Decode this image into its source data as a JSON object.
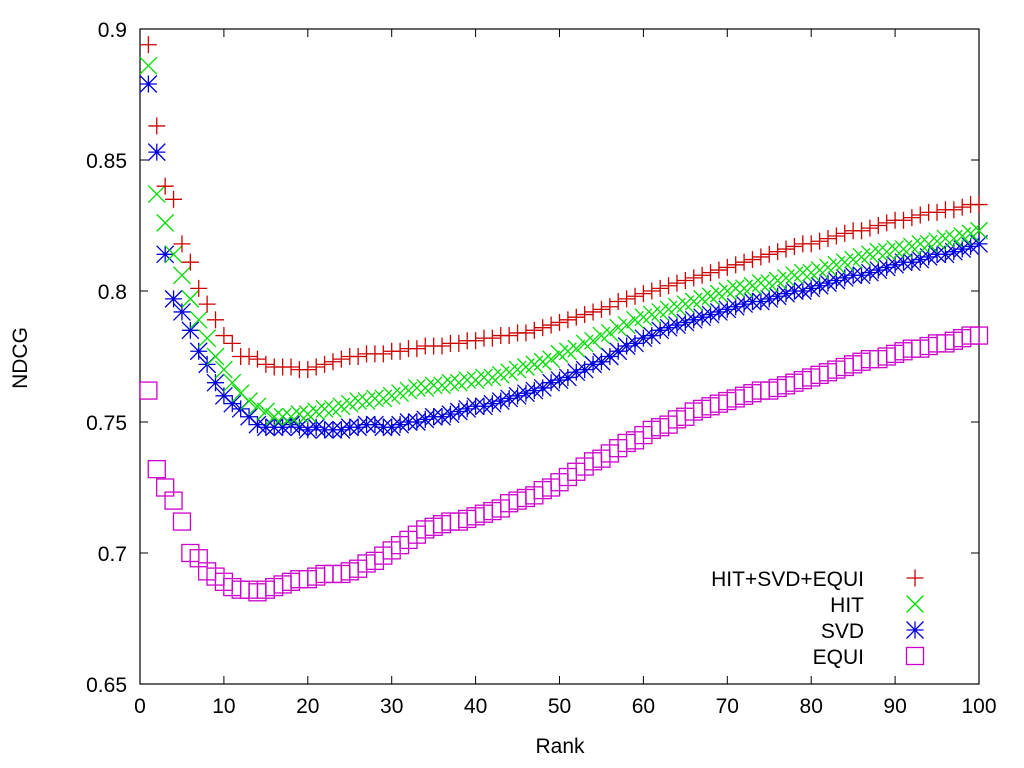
{
  "chart_data": {
    "type": "scatter",
    "title": "",
    "xlabel": "Rank",
    "ylabel": "NDCG",
    "xlim": [
      0,
      100
    ],
    "ylim": [
      0.65,
      0.9
    ],
    "xticks": [
      "0",
      "10",
      "20",
      "30",
      "40",
      "50",
      "60",
      "70",
      "80",
      "90",
      "100"
    ],
    "yticks": [
      "0.65",
      "0.7",
      "0.75",
      "0.8",
      "0.85",
      "0.9"
    ],
    "grid": false,
    "legend_position": "bottom-right",
    "x": [
      1,
      2,
      3,
      4,
      5,
      6,
      7,
      8,
      9,
      10,
      11,
      12,
      13,
      14,
      15,
      16,
      17,
      18,
      19,
      20,
      21,
      22,
      23,
      24,
      25,
      26,
      27,
      28,
      29,
      30,
      31,
      32,
      33,
      34,
      35,
      36,
      37,
      38,
      39,
      40,
      41,
      42,
      43,
      44,
      45,
      46,
      47,
      48,
      49,
      50,
      51,
      52,
      53,
      54,
      55,
      56,
      57,
      58,
      59,
      60,
      61,
      62,
      63,
      64,
      65,
      66,
      67,
      68,
      69,
      70,
      71,
      72,
      73,
      74,
      75,
      76,
      77,
      78,
      79,
      80,
      81,
      82,
      83,
      84,
      85,
      86,
      87,
      88,
      89,
      90,
      91,
      92,
      93,
      94,
      95,
      96,
      97,
      98,
      99,
      100
    ],
    "series": [
      {
        "name": "HIT+SVD+EQUI",
        "marker": "plus",
        "color": "#cc0000",
        "values": [
          0.894,
          0.863,
          0.84,
          0.835,
          0.818,
          0.811,
          0.801,
          0.795,
          0.789,
          0.783,
          0.78,
          0.775,
          0.775,
          0.774,
          0.772,
          0.771,
          0.771,
          0.771,
          0.77,
          0.77,
          0.771,
          0.772,
          0.773,
          0.774,
          0.775,
          0.775,
          0.776,
          0.776,
          0.776,
          0.777,
          0.777,
          0.778,
          0.778,
          0.779,
          0.779,
          0.779,
          0.78,
          0.78,
          0.781,
          0.781,
          0.782,
          0.782,
          0.783,
          0.783,
          0.784,
          0.784,
          0.785,
          0.786,
          0.787,
          0.788,
          0.789,
          0.79,
          0.791,
          0.792,
          0.793,
          0.794,
          0.796,
          0.797,
          0.798,
          0.799,
          0.8,
          0.801,
          0.802,
          0.803,
          0.804,
          0.805,
          0.806,
          0.807,
          0.808,
          0.809,
          0.81,
          0.811,
          0.812,
          0.813,
          0.814,
          0.815,
          0.816,
          0.817,
          0.818,
          0.818,
          0.819,
          0.82,
          0.821,
          0.822,
          0.823,
          0.823,
          0.824,
          0.825,
          0.826,
          0.827,
          0.827,
          0.828,
          0.829,
          0.83,
          0.83,
          0.831,
          0.831,
          0.832,
          0.833,
          0.833
        ]
      },
      {
        "name": "HIT",
        "marker": "cross",
        "color": "#00dd00",
        "values": [
          0.886,
          0.837,
          0.826,
          0.814,
          0.806,
          0.797,
          0.789,
          0.782,
          0.775,
          0.77,
          0.765,
          0.761,
          0.758,
          0.756,
          0.754,
          0.752,
          0.752,
          0.752,
          0.753,
          0.753,
          0.754,
          0.755,
          0.755,
          0.756,
          0.757,
          0.758,
          0.758,
          0.759,
          0.759,
          0.76,
          0.761,
          0.762,
          0.763,
          0.763,
          0.764,
          0.764,
          0.765,
          0.765,
          0.766,
          0.766,
          0.767,
          0.767,
          0.768,
          0.769,
          0.77,
          0.771,
          0.772,
          0.773,
          0.774,
          0.776,
          0.777,
          0.778,
          0.78,
          0.781,
          0.783,
          0.784,
          0.786,
          0.787,
          0.789,
          0.79,
          0.791,
          0.792,
          0.793,
          0.794,
          0.795,
          0.796,
          0.797,
          0.798,
          0.799,
          0.8,
          0.801,
          0.801,
          0.802,
          0.803,
          0.803,
          0.804,
          0.805,
          0.806,
          0.807,
          0.807,
          0.808,
          0.809,
          0.81,
          0.811,
          0.812,
          0.813,
          0.814,
          0.815,
          0.815,
          0.816,
          0.816,
          0.817,
          0.818,
          0.818,
          0.819,
          0.82,
          0.82,
          0.821,
          0.822,
          0.823
        ]
      },
      {
        "name": "SVD",
        "marker": "star",
        "color": "#0000dd",
        "values": [
          0.879,
          0.853,
          0.814,
          0.797,
          0.792,
          0.785,
          0.777,
          0.772,
          0.765,
          0.76,
          0.757,
          0.755,
          0.752,
          0.749,
          0.748,
          0.748,
          0.748,
          0.749,
          0.748,
          0.747,
          0.748,
          0.747,
          0.747,
          0.747,
          0.748,
          0.748,
          0.749,
          0.749,
          0.748,
          0.748,
          0.749,
          0.75,
          0.75,
          0.751,
          0.752,
          0.752,
          0.753,
          0.754,
          0.755,
          0.756,
          0.756,
          0.757,
          0.758,
          0.759,
          0.76,
          0.761,
          0.762,
          0.763,
          0.765,
          0.766,
          0.767,
          0.769,
          0.77,
          0.772,
          0.773,
          0.775,
          0.777,
          0.779,
          0.78,
          0.782,
          0.783,
          0.785,
          0.786,
          0.787,
          0.788,
          0.789,
          0.79,
          0.791,
          0.792,
          0.793,
          0.794,
          0.795,
          0.796,
          0.796,
          0.797,
          0.798,
          0.799,
          0.8,
          0.8,
          0.801,
          0.802,
          0.803,
          0.804,
          0.805,
          0.806,
          0.806,
          0.807,
          0.808,
          0.809,
          0.81,
          0.811,
          0.811,
          0.812,
          0.813,
          0.814,
          0.814,
          0.815,
          0.816,
          0.817,
          0.818
        ]
      },
      {
        "name": "EQUI",
        "marker": "square",
        "color": "#cc00cc",
        "values": [
          0.762,
          0.732,
          0.725,
          0.72,
          0.712,
          0.7,
          0.698,
          0.693,
          0.691,
          0.689,
          0.687,
          0.686,
          0.686,
          0.685,
          0.686,
          0.687,
          0.688,
          0.689,
          0.69,
          0.69,
          0.691,
          0.692,
          0.692,
          0.692,
          0.693,
          0.694,
          0.696,
          0.697,
          0.699,
          0.701,
          0.703,
          0.705,
          0.707,
          0.709,
          0.71,
          0.711,
          0.712,
          0.712,
          0.713,
          0.714,
          0.715,
          0.716,
          0.717,
          0.719,
          0.72,
          0.721,
          0.722,
          0.724,
          0.725,
          0.727,
          0.729,
          0.731,
          0.733,
          0.735,
          0.736,
          0.738,
          0.74,
          0.742,
          0.743,
          0.745,
          0.747,
          0.748,
          0.749,
          0.751,
          0.752,
          0.754,
          0.755,
          0.756,
          0.757,
          0.758,
          0.759,
          0.76,
          0.761,
          0.762,
          0.762,
          0.763,
          0.764,
          0.765,
          0.766,
          0.767,
          0.768,
          0.769,
          0.77,
          0.771,
          0.772,
          0.773,
          0.774,
          0.774,
          0.775,
          0.776,
          0.777,
          0.778,
          0.778,
          0.779,
          0.78,
          0.78,
          0.781,
          0.782,
          0.783,
          0.783
        ]
      }
    ]
  }
}
